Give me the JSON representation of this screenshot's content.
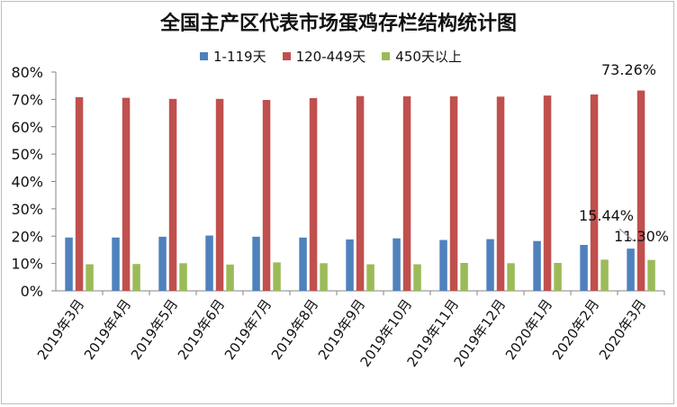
{
  "chart_data": {
    "type": "bar",
    "title": "全国主产区代表市场蛋鸡存栏结构统计图",
    "xlabel": "",
    "ylabel": "",
    "ylim": [
      0,
      80
    ],
    "yticks": [
      "0%",
      "10%",
      "20%",
      "30%",
      "40%",
      "50%",
      "60%",
      "70%",
      "80%"
    ],
    "grid": false,
    "legend_position": "top",
    "categories": [
      "2019年3月",
      "2019年4月",
      "2019年5月",
      "2019年6月",
      "2019年7月",
      "2019年8月",
      "2019年9月",
      "2019年10月",
      "2019年11月",
      "2019年12月",
      "2020年1月",
      "2020年2月",
      "2020年3月"
    ],
    "series": [
      {
        "name": "1-119天",
        "color": "#4f81bd",
        "values": [
          19.5,
          19.5,
          19.8,
          20.2,
          19.8,
          19.5,
          18.8,
          19.2,
          18.6,
          18.9,
          18.2,
          16.8,
          15.44
        ]
      },
      {
        "name": "120-449天",
        "color": "#c0504d",
        "values": [
          70.8,
          70.6,
          70.2,
          70.2,
          69.8,
          70.5,
          71.2,
          71.1,
          71.1,
          71.0,
          71.4,
          71.8,
          73.26
        ]
      },
      {
        "name": "450天以上",
        "color": "#9bbb59",
        "values": [
          9.7,
          9.8,
          10.1,
          9.6,
          10.4,
          10.1,
          9.7,
          9.7,
          10.2,
          10.1,
          10.2,
          11.4,
          11.3
        ]
      }
    ],
    "data_labels": [
      "73.26%",
      "15.44%",
      "11.30%"
    ]
  }
}
